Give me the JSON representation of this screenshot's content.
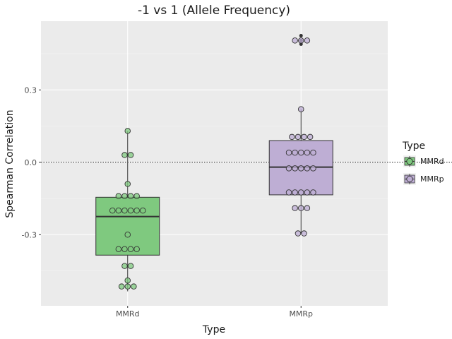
{
  "chart_data": {
    "type": "box",
    "title": "-1 vs 1 (Allele Frequency)",
    "xlabel": "Type",
    "ylabel": "Spearman Correlation",
    "categories": [
      "MMRd",
      "MMRp"
    ],
    "y_ticks": [
      -0.3,
      0.0,
      0.3
    ],
    "y_tick_labels": [
      "-0.3",
      "0.0",
      "0.3"
    ],
    "ylim": [
      -0.595,
      0.585
    ],
    "reference_line": 0.0,
    "grid": true,
    "legend": {
      "title": "Type",
      "position": "right",
      "entries": [
        "MMRd",
        "MMRp"
      ]
    },
    "colors": {
      "MMRd": "#7fc97f",
      "MMRp": "#beaed4"
    },
    "boxes": [
      {
        "name": "MMRd",
        "q1": -0.385,
        "median": -0.225,
        "q3": -0.145,
        "whisker_low": -0.535,
        "whisker_high": 0.13,
        "outliers": [],
        "points": [
          0.13,
          0.03,
          0.03,
          -0.09,
          -0.14,
          -0.14,
          -0.14,
          -0.14,
          -0.2,
          -0.2,
          -0.2,
          -0.2,
          -0.2,
          -0.2,
          -0.3,
          -0.36,
          -0.36,
          -0.36,
          -0.36,
          -0.43,
          -0.43,
          -0.49,
          -0.515,
          -0.515,
          -0.515
        ]
      },
      {
        "name": "MMRp",
        "q1": -0.135,
        "median": -0.02,
        "q3": 0.09,
        "whisker_low": -0.295,
        "whisker_high": 0.22,
        "outliers": [
          0.525,
          0.505,
          0.505,
          0.49
        ],
        "points": [
          0.505,
          0.505,
          0.505,
          0.22,
          0.105,
          0.105,
          0.105,
          0.105,
          0.04,
          0.04,
          0.04,
          0.04,
          0.04,
          -0.025,
          -0.025,
          -0.025,
          -0.025,
          -0.025,
          -0.125,
          -0.125,
          -0.125,
          -0.125,
          -0.125,
          -0.19,
          -0.19,
          -0.19,
          -0.295,
          -0.295
        ]
      }
    ]
  }
}
